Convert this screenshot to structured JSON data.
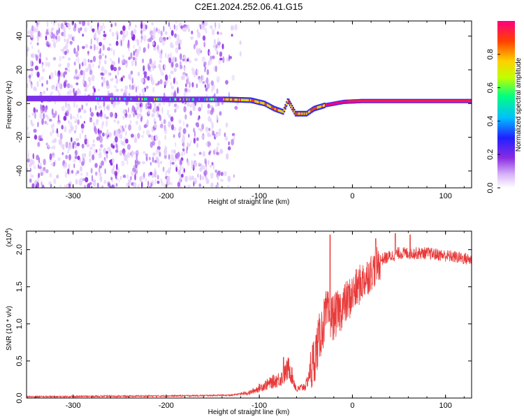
{
  "title": "C2E1.2024.252.06.41.G15",
  "chart_data": [
    {
      "type": "heatmap",
      "xlabel": "Height of straight line (km)",
      "ylabel": "Frequency (Hz)",
      "xlim": [
        -350,
        128
      ],
      "ylim": [
        -50,
        49
      ],
      "xticks": [
        -300,
        -200,
        -100,
        0,
        100
      ],
      "yticks": [
        -40,
        -20,
        0,
        20,
        40
      ],
      "colorbar": {
        "label": "Normalized spectral amplitude",
        "range": [
          0,
          1
        ],
        "ticks": [
          "0.0",
          "0.2",
          "0.4",
          "0.6",
          "0.8"
        ],
        "tick_values": [
          0.0,
          0.2,
          0.4,
          0.6,
          0.8
        ],
        "colors": [
          "#ffffff",
          "#d8b4f8",
          "#8a2be2",
          "#2020ff",
          "#00c0ff",
          "#00ff80",
          "#c0ff00",
          "#ffd000",
          "#ff4000",
          "#ff0080"
        ]
      },
      "ridge": [
        {
          "x": -350,
          "f": 3
        },
        {
          "x": -280,
          "f": 3
        },
        {
          "x": -200,
          "f": 2.5
        },
        {
          "x": -140,
          "f": 2.5
        },
        {
          "x": -110,
          "f": 2
        },
        {
          "x": -95,
          "f": 0
        },
        {
          "x": -85,
          "f": -3
        },
        {
          "x": -75,
          "f": -5
        },
        {
          "x": -70,
          "f": 2
        },
        {
          "x": -62,
          "f": -6
        },
        {
          "x": -50,
          "f": -6
        },
        {
          "x": -42,
          "f": -3
        },
        {
          "x": -30,
          "f": -1
        },
        {
          "x": -10,
          "f": 1
        },
        {
          "x": 10,
          "f": 1.5
        },
        {
          "x": 60,
          "f": 1.5
        },
        {
          "x": 128,
          "f": 1.5
        }
      ]
    },
    {
      "type": "line",
      "xlabel": "Height of straight line (km)",
      "ylabel": "SNR (10 * v/v)",
      "yscale_label": "(x10",
      "yscale_exp": "4",
      "xlim": [
        -350,
        128
      ],
      "ylim": [
        0,
        2.25
      ],
      "xticks": [
        -300,
        -200,
        -100,
        0,
        100
      ],
      "yticks": [
        0.0,
        0.5,
        1.0,
        1.5,
        2.0
      ],
      "ytick_labels": [
        "0.0",
        "0.5",
        "1.0",
        "1.5",
        "2.0"
      ],
      "color": "#e83a3a",
      "envelope": [
        {
          "x": -350,
          "y": 0.02
        },
        {
          "x": -200,
          "y": 0.03
        },
        {
          "x": -130,
          "y": 0.04
        },
        {
          "x": -110,
          "y": 0.08
        },
        {
          "x": -95,
          "y": 0.18
        },
        {
          "x": -75,
          "y": 0.3
        },
        {
          "x": -68,
          "y": 0.45
        },
        {
          "x": -60,
          "y": 0.12
        },
        {
          "x": -50,
          "y": 0.18
        },
        {
          "x": -42,
          "y": 0.55
        },
        {
          "x": -35,
          "y": 0.9
        },
        {
          "x": -28,
          "y": 1.2
        },
        {
          "x": -20,
          "y": 1.15
        },
        {
          "x": -10,
          "y": 1.3
        },
        {
          "x": 0,
          "y": 1.45
        },
        {
          "x": 10,
          "y": 1.62
        },
        {
          "x": 20,
          "y": 1.75
        },
        {
          "x": 30,
          "y": 1.88
        },
        {
          "x": 50,
          "y": 1.97
        },
        {
          "x": 80,
          "y": 1.97
        },
        {
          "x": 110,
          "y": 1.92
        },
        {
          "x": 128,
          "y": 1.88
        }
      ],
      "spikes": [
        {
          "x": -24,
          "y": 2.2
        },
        {
          "x": 25,
          "y": 2.15
        },
        {
          "x": 46,
          "y": 2.22
        },
        {
          "x": 62,
          "y": 2.2
        },
        {
          "x": -74,
          "y": 0.55
        }
      ]
    }
  ]
}
